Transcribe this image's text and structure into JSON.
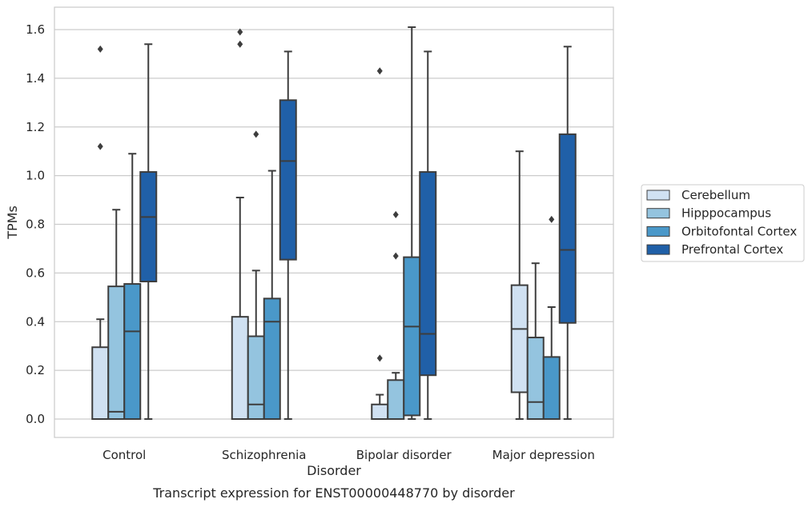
{
  "chart_data": {
    "type": "box",
    "title": "",
    "caption": "Transcript expression for ENST00000448770 by disorder",
    "xlabel": "Disorder",
    "ylabel": "TPMs",
    "ylim": [
      -0.08,
      1.69
    ],
    "yticks": [
      "0.0",
      "0.2",
      "0.4",
      "0.6",
      "0.8",
      "1.0",
      "1.2",
      "1.4",
      "1.6"
    ],
    "grid": "horizontal",
    "legend_position": "right",
    "categories": [
      "Control",
      "Schizophrenia",
      "Bipolar disorder",
      "Major depression"
    ],
    "series": [
      {
        "name": "Cerebellum",
        "color": "#d0e1f2",
        "boxes": [
          {
            "whisker_low": 0.0,
            "q1": 0.0,
            "median": 0.0,
            "q3": 0.295,
            "whisker_high": 0.41,
            "outliers": [
              1.12,
              1.52
            ]
          },
          {
            "whisker_low": 0.0,
            "q1": 0.0,
            "median": 0.0,
            "q3": 0.42,
            "whisker_high": 0.91,
            "outliers": [
              1.54,
              1.59
            ]
          },
          {
            "whisker_low": 0.0,
            "q1": 0.0,
            "median": 0.0,
            "q3": 0.06,
            "whisker_high": 0.1,
            "outliers": [
              0.25,
              1.43
            ]
          },
          {
            "whisker_low": 0.0,
            "q1": 0.11,
            "median": 0.37,
            "q3": 0.55,
            "whisker_high": 1.1,
            "outliers": []
          }
        ]
      },
      {
        "name": "Hipppocampus",
        "color": "#94c4df",
        "boxes": [
          {
            "whisker_low": 0.0,
            "q1": 0.0,
            "median": 0.03,
            "q3": 0.545,
            "whisker_high": 0.86,
            "outliers": []
          },
          {
            "whisker_low": 0.0,
            "q1": 0.0,
            "median": 0.06,
            "q3": 0.34,
            "whisker_high": 0.61,
            "outliers": [
              1.17
            ]
          },
          {
            "whisker_low": 0.0,
            "q1": 0.0,
            "median": 0.0,
            "q3": 0.16,
            "whisker_high": 0.19,
            "outliers": [
              0.67,
              0.84
            ]
          },
          {
            "whisker_low": 0.0,
            "q1": 0.0,
            "median": 0.07,
            "q3": 0.335,
            "whisker_high": 0.64,
            "outliers": []
          }
        ]
      },
      {
        "name": "Orbitofontal Cortex",
        "color": "#4a98c9",
        "boxes": [
          {
            "whisker_low": 0.0,
            "q1": 0.0,
            "median": 0.36,
            "q3": 0.555,
            "whisker_high": 1.09,
            "outliers": []
          },
          {
            "whisker_low": 0.0,
            "q1": 0.0,
            "median": 0.4,
            "q3": 0.495,
            "whisker_high": 1.02,
            "outliers": []
          },
          {
            "whisker_low": 0.0,
            "q1": 0.015,
            "median": 0.38,
            "q3": 0.665,
            "whisker_high": 1.61,
            "outliers": []
          },
          {
            "whisker_low": 0.0,
            "q1": 0.0,
            "median": 0.0,
            "q3": 0.255,
            "whisker_high": 0.46,
            "outliers": [
              0.82
            ]
          }
        ]
      },
      {
        "name": "Prefrontal Cortex",
        "color": "#2060a8",
        "boxes": [
          {
            "whisker_low": 0.0,
            "q1": 0.565,
            "median": 0.83,
            "q3": 1.015,
            "whisker_high": 1.54,
            "outliers": []
          },
          {
            "whisker_low": 0.0,
            "q1": 0.655,
            "median": 1.06,
            "q3": 1.31,
            "whisker_high": 1.51,
            "outliers": []
          },
          {
            "whisker_low": 0.0,
            "q1": 0.18,
            "median": 0.35,
            "q3": 1.015,
            "whisker_high": 1.51,
            "outliers": []
          },
          {
            "whisker_low": 0.0,
            "q1": 0.395,
            "median": 0.695,
            "q3": 1.17,
            "whisker_high": 1.53,
            "outliers": []
          }
        ]
      }
    ]
  }
}
